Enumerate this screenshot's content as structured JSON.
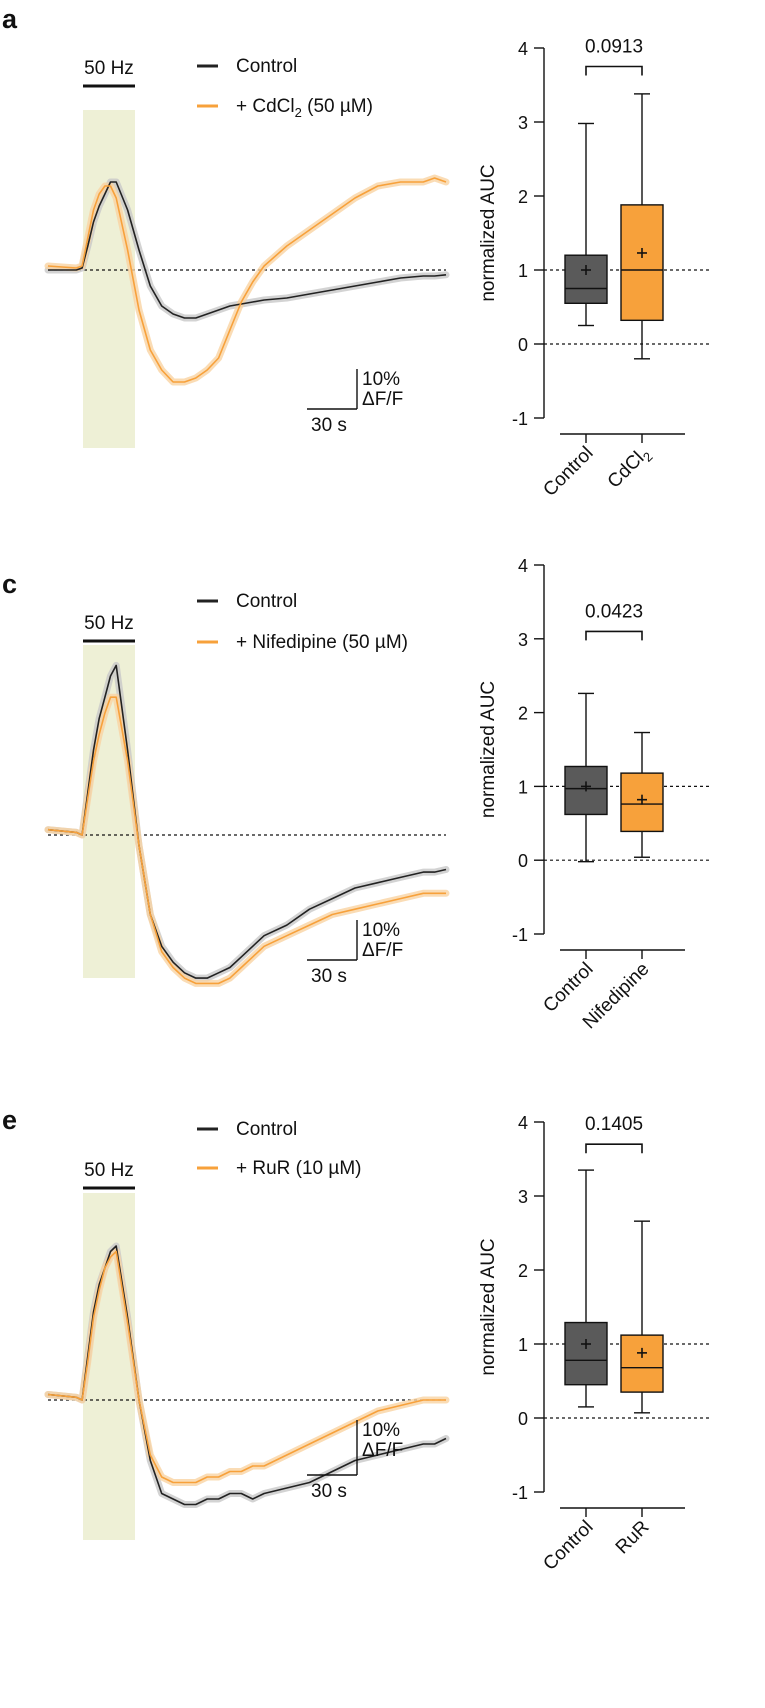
{
  "chart_data": [
    {
      "type": "line",
      "panel_label": "a",
      "stim_label": "50 Hz",
      "legend": [
        {
          "name": "Control",
          "color": "#222222"
        },
        {
          "name": "+ CdCl",
          "sub": "2",
          "suffix": " (50 µM)",
          "color": "#f7a13b"
        }
      ],
      "scalebar": {
        "x_label": "30 s",
        "y_label_1": "10%",
        "y_label_2": "ΔF/F"
      },
      "series": [
        {
          "name": "Control",
          "color": "#222222",
          "t": [
            -30,
            -5,
            0,
            5,
            10,
            15,
            20,
            25,
            30,
            40,
            50,
            60,
            70,
            80,
            90,
            100,
            110,
            120,
            130,
            140,
            150,
            160,
            180,
            200,
            220,
            240,
            260,
            280,
            300,
            310,
            320
          ],
          "y": [
            0,
            0,
            0.5,
            6,
            12,
            16,
            19,
            22,
            22,
            15,
            5,
            -4,
            -9,
            -11,
            -12,
            -12,
            -11,
            -10,
            -9,
            -8.5,
            -8,
            -7.5,
            -7,
            -6,
            -5,
            -4,
            -3,
            -2,
            -1.5,
            -1.5,
            -1.2
          ]
        },
        {
          "name": "+ CdCl2 (50 µM)",
          "color": "#f7a13b",
          "t": [
            -30,
            -5,
            0,
            5,
            10,
            15,
            20,
            25,
            30,
            40,
            50,
            60,
            70,
            80,
            90,
            100,
            110,
            120,
            130,
            140,
            150,
            160,
            180,
            200,
            220,
            240,
            260,
            280,
            300,
            310,
            320
          ],
          "y": [
            1,
            0.5,
            1,
            8,
            15,
            19,
            21,
            21,
            18,
            5,
            -10,
            -20,
            -25,
            -28,
            -28,
            -27,
            -25,
            -22,
            -15,
            -8,
            -3,
            1,
            6,
            10,
            14,
            18,
            21,
            22,
            22,
            23,
            22
          ]
        }
      ],
      "boxplot": {
        "ylabel": "normalized AUC",
        "ylim": [
          -1,
          4
        ],
        "yticks": [
          -1,
          0,
          1,
          2,
          3,
          4
        ],
        "categories": [
          "Control",
          "CdCl"
        ],
        "category_subs": [
          "",
          "2"
        ],
        "boxes": [
          {
            "min": 0.25,
            "q1": 0.55,
            "median": 0.75,
            "q3": 1.2,
            "max": 2.98,
            "mean": 1.0,
            "color": "#5a5a5a"
          },
          {
            "min": -0.2,
            "q1": 0.32,
            "median": 1.0,
            "q3": 1.88,
            "max": 3.38,
            "mean": 1.23,
            "color": "#f7a13b"
          }
        ],
        "p_value": "0.0913"
      }
    },
    {
      "type": "line",
      "panel_label": "c",
      "stim_label": "50 Hz",
      "legend": [
        {
          "name": "Control",
          "color": "#222222"
        },
        {
          "name": "+ Nifedipine (50 µM)",
          "sub": "",
          "suffix": "",
          "color": "#f7a13b"
        }
      ],
      "scalebar": {
        "x_label": "30 s",
        "y_label_1": "10%",
        "y_label_2": "ΔF/F"
      },
      "series": [
        {
          "name": "Control",
          "color": "#222222",
          "t": [
            -30,
            -5,
            0,
            5,
            10,
            15,
            20,
            25,
            30,
            40,
            50,
            60,
            70,
            80,
            90,
            100,
            110,
            120,
            130,
            140,
            150,
            160,
            180,
            200,
            220,
            240,
            260,
            280,
            300,
            310,
            320
          ],
          "y": [
            1,
            0.5,
            0,
            8,
            16,
            22,
            26,
            30,
            32,
            16,
            -2,
            -15,
            -21,
            -24,
            -26,
            -27,
            -27,
            -26,
            -25,
            -23,
            -21,
            -19,
            -17,
            -14,
            -12,
            -10,
            -9,
            -8,
            -7,
            -7,
            -6.5
          ]
        },
        {
          "name": "+ Nifedipine (50 µM)",
          "color": "#f7a13b",
          "t": [
            -30,
            -5,
            0,
            5,
            10,
            15,
            20,
            25,
            30,
            40,
            50,
            60,
            70,
            80,
            90,
            100,
            110,
            120,
            130,
            140,
            150,
            160,
            180,
            200,
            220,
            240,
            260,
            280,
            300,
            310,
            320
          ],
          "y": [
            1,
            0.5,
            0,
            7,
            14,
            19,
            23,
            26,
            26,
            14,
            -2,
            -15,
            -22,
            -25,
            -27,
            -28,
            -28,
            -28,
            -27,
            -25,
            -23,
            -21,
            -19,
            -17,
            -15,
            -14,
            -13,
            -12,
            -11,
            -11,
            -11
          ]
        }
      ],
      "boxplot": {
        "ylabel": "normalized AUC",
        "ylim": [
          -1,
          4
        ],
        "yticks": [
          -1,
          0,
          1,
          2,
          3,
          4
        ],
        "categories": [
          "Control",
          "Nifedipine"
        ],
        "category_subs": [
          "",
          ""
        ],
        "boxes": [
          {
            "min": -0.02,
            "q1": 0.62,
            "median": 0.97,
            "q3": 1.27,
            "max": 2.26,
            "mean": 1.0,
            "color": "#5a5a5a"
          },
          {
            "min": 0.04,
            "q1": 0.39,
            "median": 0.76,
            "q3": 1.18,
            "max": 1.73,
            "mean": 0.82,
            "color": "#f7a13b"
          }
        ],
        "p_value": "0.0423"
      }
    },
    {
      "type": "line",
      "panel_label": "e",
      "stim_label": "50 Hz",
      "legend": [
        {
          "name": "Control",
          "color": "#222222"
        },
        {
          "name": "+ RuR (10 µM)",
          "sub": "",
          "suffix": "",
          "color": "#f7a13b"
        }
      ],
      "scalebar": {
        "x_label": "30 s",
        "y_label_1": "10%",
        "y_label_2": "ΔF/F"
      },
      "series": [
        {
          "name": "Control",
          "color": "#222222",
          "t": [
            -30,
            -5,
            0,
            5,
            10,
            15,
            20,
            25,
            30,
            40,
            50,
            60,
            70,
            80,
            90,
            100,
            110,
            120,
            130,
            140,
            150,
            160,
            180,
            200,
            220,
            240,
            260,
            280,
            300,
            310,
            320
          ],
          "y": [
            1,
            0.5,
            0,
            8,
            16,
            21,
            24,
            27,
            28,
            15,
            0,
            -11,
            -17,
            -18,
            -19,
            -19,
            -18,
            -18,
            -17,
            -17,
            -18,
            -17,
            -16,
            -15,
            -13,
            -11,
            -10,
            -9,
            -8,
            -8,
            -7
          ]
        },
        {
          "name": "+ RuR (10 µM)",
          "color": "#f7a13b",
          "t": [
            -30,
            -5,
            0,
            5,
            10,
            15,
            20,
            25,
            30,
            40,
            50,
            60,
            70,
            80,
            90,
            100,
            110,
            120,
            130,
            140,
            150,
            160,
            180,
            200,
            220,
            240,
            260,
            280,
            300,
            310,
            320
          ],
          "y": [
            1,
            0.5,
            0,
            7,
            15,
            20,
            24,
            26,
            27,
            14,
            0,
            -10,
            -14,
            -15,
            -15,
            -15,
            -14,
            -14,
            -13,
            -13,
            -12,
            -12,
            -10,
            -8,
            -6,
            -4,
            -2,
            -1,
            0,
            0,
            0
          ]
        }
      ],
      "boxplot": {
        "ylabel": "normalized AUC",
        "ylim": [
          -1,
          4
        ],
        "yticks": [
          -1,
          0,
          1,
          2,
          3,
          4
        ],
        "categories": [
          "Control",
          "RuR"
        ],
        "category_subs": [
          "",
          ""
        ],
        "boxes": [
          {
            "min": 0.15,
            "q1": 0.45,
            "median": 0.78,
            "q3": 1.29,
            "max": 3.35,
            "mean": 1.0,
            "color": "#5a5a5a"
          },
          {
            "min": 0.07,
            "q1": 0.35,
            "median": 0.68,
            "q3": 1.12,
            "max": 2.66,
            "mean": 0.88,
            "color": "#f7a13b"
          }
        ],
        "p_value": "0.1405"
      }
    }
  ]
}
